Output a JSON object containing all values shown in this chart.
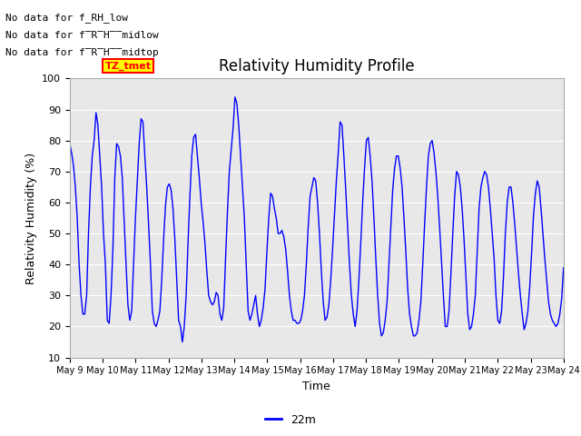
{
  "title": "Relativity Humidity Profile",
  "xlabel": "Time",
  "ylabel": "Relativity Humidity (%)",
  "ylim": [
    10,
    100
  ],
  "xtick_labels": [
    "May 9",
    "May 10",
    "May 11",
    "May 12",
    "May 13",
    "May 14",
    "May 15",
    "May 16",
    "May 17",
    "May 18",
    "May 19",
    "May 20",
    "May 21",
    "May 22",
    "May 23",
    "May 24"
  ],
  "legend_label": "22m",
  "line_color": "#0000ff",
  "bg_color": "#e8e8e8",
  "annotations_text": [
    "No data for f_RH_low",
    "No data for f̅R̅H̅_̅midlow",
    "No data for f̅R̅H̅_̅midtop"
  ],
  "annotation_color_text": "#000000",
  "tz_box_text": "TZ_tmet",
  "tz_box_facecolor": "#ffff00",
  "tz_box_edgecolor": "#ff0000",
  "tz_box_textcolor": "#ff0000",
  "rh_values": [
    79,
    76,
    72,
    65,
    55,
    40,
    30,
    24,
    24,
    30,
    50,
    65,
    75,
    80,
    89,
    85,
    75,
    65,
    50,
    40,
    22,
    21,
    30,
    45,
    68,
    79,
    78,
    75,
    68,
    54,
    40,
    27,
    22,
    25,
    40,
    55,
    67,
    79,
    87,
    86,
    75,
    65,
    53,
    40,
    25,
    21,
    20,
    22,
    25,
    35,
    48,
    59,
    65,
    66,
    64,
    58,
    48,
    35,
    22,
    20,
    15,
    20,
    30,
    47,
    62,
    75,
    81,
    82,
    75,
    68,
    60,
    54,
    47,
    38,
    30,
    28,
    27,
    28,
    31,
    30,
    24,
    22,
    26,
    42,
    57,
    70,
    77,
    84,
    94,
    92,
    85,
    75,
    65,
    55,
    40,
    25,
    22,
    24,
    27,
    30,
    24,
    20,
    22,
    26,
    32,
    44,
    55,
    63,
    62,
    58,
    55,
    50,
    50,
    51,
    49,
    45,
    38,
    30,
    25,
    22,
    22,
    21,
    21,
    22,
    25,
    30,
    40,
    52,
    62,
    65,
    68,
    67,
    60,
    50,
    38,
    28,
    22,
    23,
    27,
    35,
    45,
    56,
    67,
    76,
    86,
    85,
    75,
    64,
    52,
    40,
    30,
    24,
    20,
    25,
    35,
    47,
    60,
    71,
    80,
    81,
    75,
    67,
    55,
    42,
    30,
    21,
    17,
    18,
    22,
    28,
    40,
    52,
    64,
    71,
    75,
    75,
    71,
    65,
    55,
    44,
    32,
    24,
    20,
    17,
    17,
    18,
    22,
    28,
    40,
    53,
    65,
    75,
    79,
    80,
    76,
    70,
    62,
    52,
    41,
    30,
    20,
    20,
    25,
    37,
    50,
    62,
    70,
    69,
    65,
    58,
    48,
    36,
    24,
    19,
    20,
    24,
    30,
    44,
    58,
    65,
    68,
    70,
    69,
    65,
    58,
    50,
    42,
    30,
    22,
    21,
    25,
    36,
    50,
    60,
    65,
    65,
    60,
    53,
    45,
    37,
    30,
    24,
    19,
    21,
    25,
    33,
    44,
    56,
    63,
    67,
    65,
    58,
    50,
    42,
    35,
    28,
    24,
    22,
    21,
    20,
    21,
    24,
    29,
    39
  ]
}
